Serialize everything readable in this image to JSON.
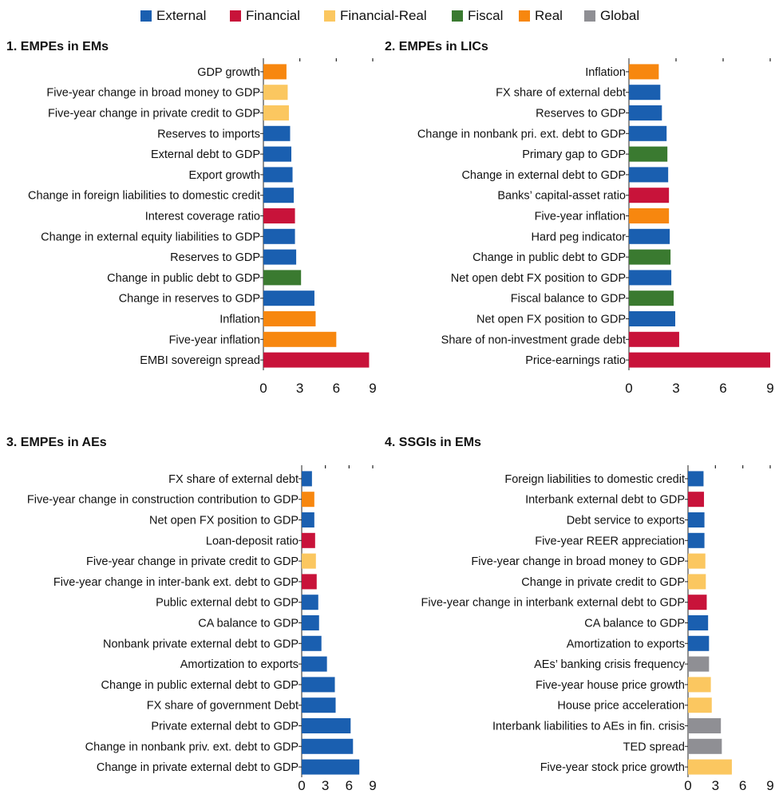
{
  "legend": [
    {
      "name": "External",
      "color": "#1a5fb0"
    },
    {
      "name": "Financial",
      "color": "#c8133a"
    },
    {
      "name": "Financial-Real",
      "color": "#fbc760"
    },
    {
      "name": "Fiscal",
      "color": "#3a7a30"
    },
    {
      "name": "Real",
      "color": "#f7870f"
    },
    {
      "name": "Global",
      "color": "#8f8f94"
    }
  ],
  "chart_data": [
    {
      "type": "bar",
      "orientation": "horizontal",
      "title": "1. EMPEs in EMs",
      "xlim": [
        0,
        9
      ],
      "xticks": [
        0,
        3,
        6,
        9
      ],
      "bars": [
        {
          "label": "GDP growth",
          "value": 1.9,
          "category": "Real"
        },
        {
          "label": "Five-year change in broad money to GDP",
          "value": 2.0,
          "category": "Financial-Real"
        },
        {
          "label": "Five-year change in private credit to GDP",
          "value": 2.1,
          "category": "Financial-Real"
        },
        {
          "label": "Reserves to imports",
          "value": 2.2,
          "category": "External"
        },
        {
          "label": "External debt to GDP",
          "value": 2.3,
          "category": "External"
        },
        {
          "label": "Export growth",
          "value": 2.4,
          "category": "External"
        },
        {
          "label": "Change in foreign liabilities to domestic credit",
          "value": 2.5,
          "category": "External"
        },
        {
          "label": "Interest coverage ratio",
          "value": 2.6,
          "category": "Financial"
        },
        {
          "label": "Change in external equity liabilities to GDP",
          "value": 2.6,
          "category": "External"
        },
        {
          "label": "Reserves to GDP",
          "value": 2.7,
          "category": "External"
        },
        {
          "label": "Change in public debt to GDP",
          "value": 3.1,
          "category": "Fiscal"
        },
        {
          "label": "Change in reserves to GDP",
          "value": 4.2,
          "category": "External"
        },
        {
          "label": "Inflation",
          "value": 4.3,
          "category": "Real"
        },
        {
          "label": "Five-year inflation",
          "value": 6.0,
          "category": "Real"
        },
        {
          "label": "EMBI sovereign spread",
          "value": 8.7,
          "category": "Financial"
        }
      ]
    },
    {
      "type": "bar",
      "orientation": "horizontal",
      "title": "2. EMPEs in LICs",
      "xlim": [
        0,
        9
      ],
      "xticks": [
        0,
        3,
        6,
        9
      ],
      "bars": [
        {
          "label": "Inflation",
          "value": 1.9,
          "category": "Real"
        },
        {
          "label": "FX share of external debt",
          "value": 2.0,
          "category": "External"
        },
        {
          "label": "Reserves to GDP",
          "value": 2.1,
          "category": "External"
        },
        {
          "label": "Change in nonbank pri. ext. debt to GDP",
          "value": 2.4,
          "category": "External"
        },
        {
          "label": "Primary gap to GDP",
          "value": 2.45,
          "category": "Fiscal"
        },
        {
          "label": "Change in external debt to GDP",
          "value": 2.5,
          "category": "External"
        },
        {
          "label": "Banks’ capital-asset ratio",
          "value": 2.55,
          "category": "Financial"
        },
        {
          "label": "Five-year inflation",
          "value": 2.55,
          "category": "Real"
        },
        {
          "label": "Hard peg indicator",
          "value": 2.6,
          "category": "External"
        },
        {
          "label": "Change in public debt to GDP",
          "value": 2.65,
          "category": "Fiscal"
        },
        {
          "label": "Net open debt FX position to GDP",
          "value": 2.7,
          "category": "External"
        },
        {
          "label": "Fiscal balance to GDP",
          "value": 2.85,
          "category": "Fiscal"
        },
        {
          "label": "Net open FX position to GDP",
          "value": 2.95,
          "category": "External"
        },
        {
          "label": "Share of non-investment grade debt",
          "value": 3.2,
          "category": "Financial"
        },
        {
          "label": "Price-earnings ratio",
          "value": 9.0,
          "category": "Financial"
        }
      ]
    },
    {
      "type": "bar",
      "orientation": "horizontal",
      "title": "3. EMPEs in AEs",
      "xlim": [
        0,
        9
      ],
      "xticks": [
        0,
        3,
        6,
        9
      ],
      "bars": [
        {
          "label": "FX share of external debt",
          "value": 1.3,
          "category": "External"
        },
        {
          "label": "Five-year change in construction contribution to GDP",
          "value": 1.6,
          "category": "Real"
        },
        {
          "label": "Net open FX position to GDP",
          "value": 1.6,
          "category": "External"
        },
        {
          "label": "Loan-deposit ratio",
          "value": 1.7,
          "category": "Financial"
        },
        {
          "label": "Five-year change in private credit to GDP",
          "value": 1.8,
          "category": "Financial-Real"
        },
        {
          "label": "Five-year change in inter-bank ext. debt to GDP",
          "value": 1.9,
          "category": "Financial"
        },
        {
          "label": "Public external debt to GDP",
          "value": 2.1,
          "category": "External"
        },
        {
          "label": "CA balance to GDP",
          "value": 2.2,
          "category": "External"
        },
        {
          "label": "Nonbank private external debt to GDP",
          "value": 2.5,
          "category": "External"
        },
        {
          "label": "Amortization to exports",
          "value": 3.2,
          "category": "External"
        },
        {
          "label": "Change in public external debt to GDP",
          "value": 4.2,
          "category": "External"
        },
        {
          "label": "FX share of government Debt",
          "value": 4.3,
          "category": "External"
        },
        {
          "label": "Private external debt to GDP",
          "value": 6.2,
          "category": "External"
        },
        {
          "label": "Change in nonbank priv. ext. debt to GDP",
          "value": 6.5,
          "category": "External"
        },
        {
          "label": "Change in private external debt to GDP",
          "value": 7.3,
          "category": "External"
        }
      ]
    },
    {
      "type": "bar",
      "orientation": "horizontal",
      "title": "4. SSGIs in EMs",
      "xlim": [
        0,
        9
      ],
      "xticks": [
        0,
        3,
        6,
        9
      ],
      "bars": [
        {
          "label": "Foreign liabilities to domestic credit",
          "value": 1.7,
          "category": "External"
        },
        {
          "label": "Interbank external debt to GDP",
          "value": 1.75,
          "category": "Financial"
        },
        {
          "label": "Debt service to exports",
          "value": 1.8,
          "category": "External"
        },
        {
          "label": "Five-year REER appreciation",
          "value": 1.8,
          "category": "External"
        },
        {
          "label": "Five-year change in broad money to GDP",
          "value": 1.9,
          "category": "Financial-Real"
        },
        {
          "label": "Change in private credit to GDP",
          "value": 1.95,
          "category": "Financial-Real"
        },
        {
          "label": "Five-year change in interbank external debt to GDP",
          "value": 2.05,
          "category": "Financial"
        },
        {
          "label": "CA balance to GDP",
          "value": 2.2,
          "category": "External"
        },
        {
          "label": "Amortization to exports",
          "value": 2.3,
          "category": "External"
        },
        {
          "label": "AEs’ banking crisis frequency",
          "value": 2.3,
          "category": "Global"
        },
        {
          "label": "Five-year house price growth",
          "value": 2.5,
          "category": "Financial-Real"
        },
        {
          "label": "House price acceleration",
          "value": 2.6,
          "category": "Financial-Real"
        },
        {
          "label": "Interbank liabilities to AEs in fin. crisis",
          "value": 3.6,
          "category": "Global"
        },
        {
          "label": "TED spread",
          "value": 3.7,
          "category": "Global"
        },
        {
          "label": "Five-year stock price growth",
          "value": 4.8,
          "category": "Financial-Real"
        }
      ]
    }
  ]
}
